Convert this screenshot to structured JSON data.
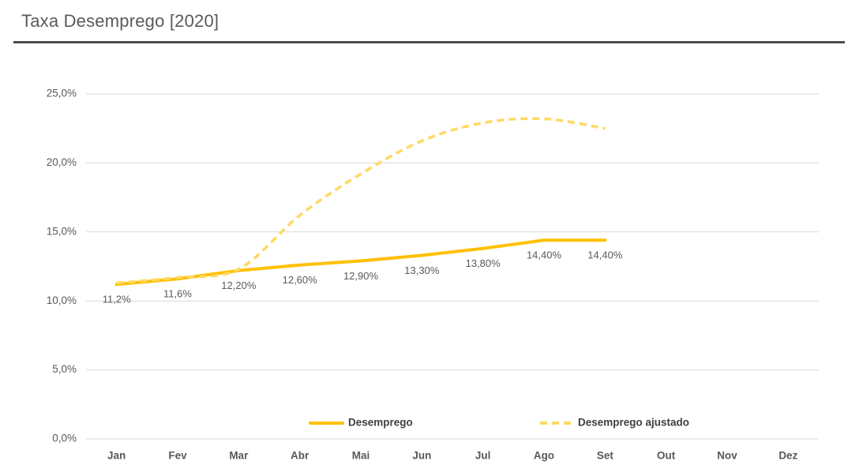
{
  "header": {
    "title": "Taxa Desemprego [2020]"
  },
  "colors": {
    "series_solid": "#FFC000",
    "series_dashed": "#FFD966",
    "gridline": "#D9D9D9",
    "axis_text": "#595959",
    "data_label_text": "#595959",
    "legend_text": "#404040",
    "title_text": "#595959",
    "divider": "#4D4D4D"
  },
  "chart_data": {
    "type": "line",
    "title": "Taxa Desemprego [2020]",
    "categories": [
      "Jan",
      "Fev",
      "Mar",
      "Abr",
      "Mai",
      "Jun",
      "Jul",
      "Ago",
      "Set",
      "Out",
      "Nov",
      "Dez"
    ],
    "y_axis": {
      "min": 0,
      "max": 25,
      "tick_values": [
        0,
        5,
        10,
        15,
        20,
        25
      ],
      "tick_labels": [
        "0,0%",
        "5,0%",
        "10,0%",
        "15,0%",
        "20,0%",
        "25,0%"
      ]
    },
    "grid": true,
    "legend_position": "bottom",
    "series": [
      {
        "name": "Desemprego",
        "line_style": "solid",
        "color": "#FFC000",
        "values": [
          11.2,
          11.6,
          12.2,
          12.6,
          12.9,
          13.3,
          13.8,
          14.4,
          14.4,
          null,
          null,
          null
        ],
        "data_labels": [
          "11,2%",
          "11,6%",
          "12,20%",
          "12,60%",
          "12,90%",
          "13,30%",
          "13,80%",
          "14,40%",
          "14,40%",
          null,
          null,
          null
        ]
      },
      {
        "name": "Desemprego ajustado",
        "line_style": "dashed",
        "color": "#FFD966",
        "values": [
          11.3,
          11.7,
          12.3,
          16.2,
          19.2,
          21.6,
          22.9,
          23.2,
          22.5,
          null,
          null,
          null
        ],
        "data_labels": [
          null,
          null,
          null,
          null,
          null,
          null,
          null,
          null,
          null,
          null,
          null,
          null
        ]
      }
    ]
  }
}
